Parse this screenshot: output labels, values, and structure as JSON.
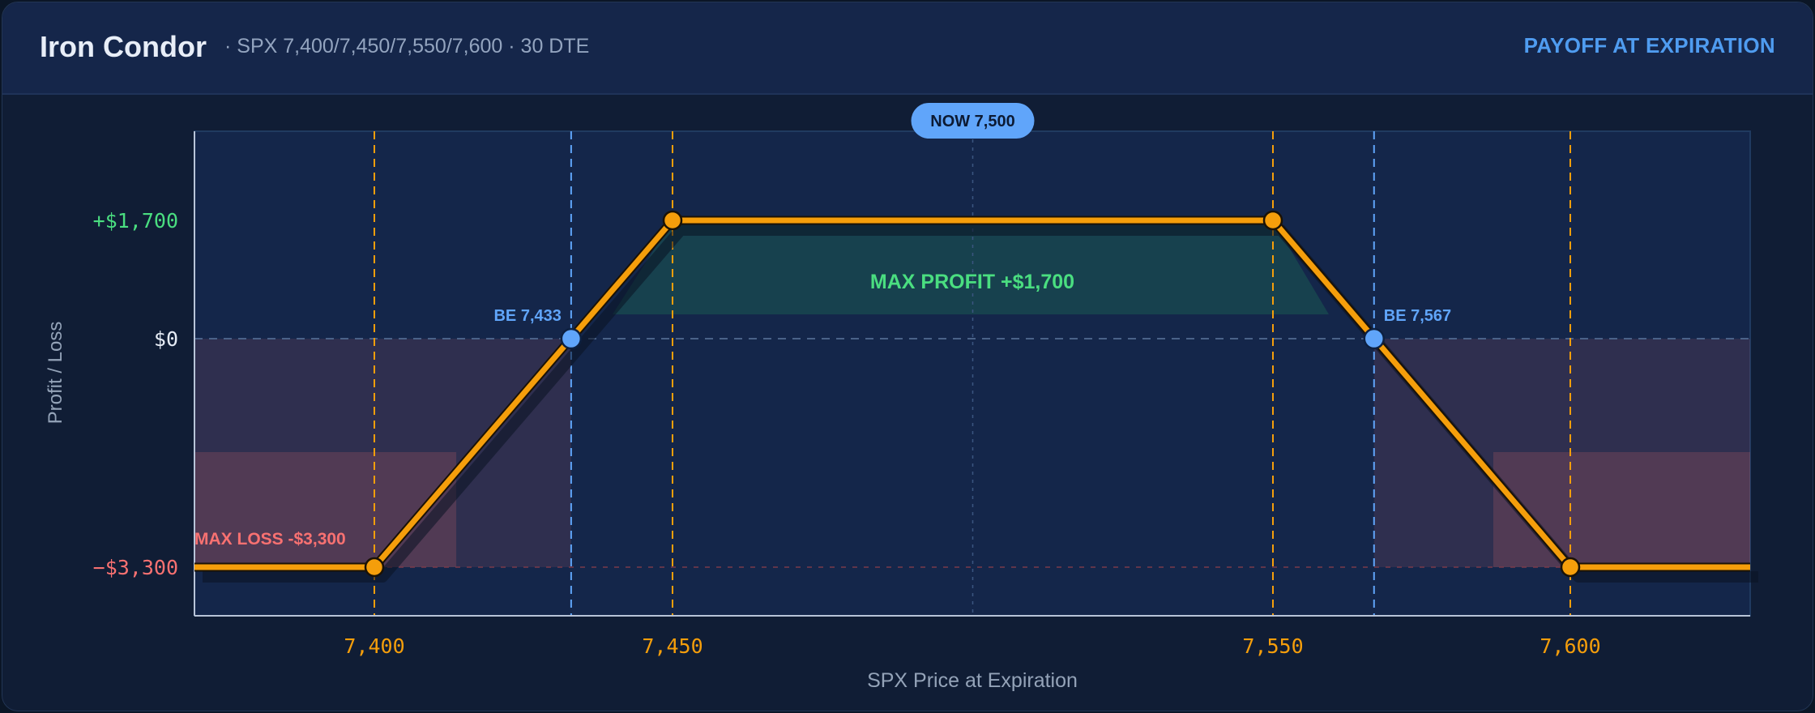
{
  "header": {
    "title": "Iron Condor",
    "subtitle": "· SPX 7,400/7,450/7,550/7,600 · 30 DTE",
    "mode_label": "PAYOFF AT EXPIRATION"
  },
  "colors": {
    "payoff_line": "#f59e0b",
    "breakeven": "#60a5fa",
    "profit": "#4ade80",
    "loss": "#f87171",
    "axis_text": "#94a3b8",
    "background": "#101d35",
    "plot_bg": "#14264a"
  },
  "chart_data": {
    "type": "line",
    "xlabel": "SPX Price at Expiration",
    "ylabel": "Profit / Loss",
    "xlim": [
      7370,
      7630
    ],
    "ylim": [
      -4000,
      2300
    ],
    "x_ticks": [
      7400,
      7450,
      7550,
      7600
    ],
    "x_tick_labels": [
      "7,400",
      "7,450",
      "7,550",
      "7,600"
    ],
    "y_ticks": [
      1700,
      0,
      -3300
    ],
    "y_tick_labels": [
      "+$1,700",
      "$0",
      "−$3,300"
    ],
    "series": [
      {
        "x": [
          7370,
          7400,
          7450,
          7550,
          7600,
          7630
        ],
        "y": [
          -3300,
          -3300,
          1700,
          1700,
          -3300,
          -3300
        ]
      }
    ],
    "strikes": [
      7400,
      7450,
      7550,
      7600
    ],
    "breakevens": [
      {
        "x": 7433,
        "label": "BE 7,433"
      },
      {
        "x": 7567,
        "label": "BE 7,567"
      }
    ],
    "current_price": {
      "x": 7500,
      "label": "NOW 7,500"
    },
    "annotations": {
      "max_profit": "MAX PROFIT  +$1,700",
      "max_loss": "MAX LOSS  -$3,300"
    },
    "grid": true
  }
}
